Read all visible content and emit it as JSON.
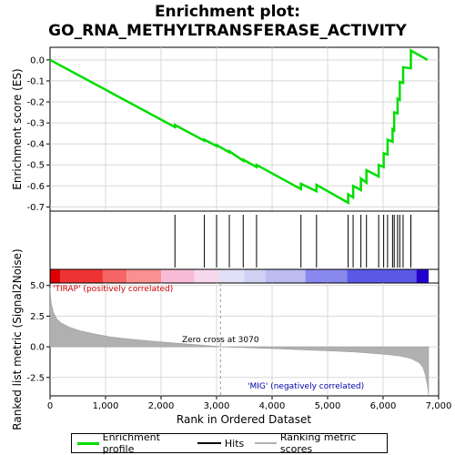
{
  "title_line1": "Enrichment plot:",
  "title_line2": "GO_RNA_METHYLTRANSFERASE_ACTIVITY",
  "colors": {
    "es_line": "#00dd00",
    "hits": "#000000",
    "ranking": "#b0b0b0",
    "positive_label": "#cc0000",
    "negative_label": "#0000aa"
  },
  "legend": {
    "enrichment_profile": "Enrichment profile",
    "hits": "Hits",
    "ranking_metric_scores": "Ranking metric scores"
  },
  "chart_data": [
    {
      "type": "line",
      "name": "enrichment-profile",
      "ylabel": "Enrichment score (ES)",
      "ylim": [
        -0.72,
        0.06
      ],
      "yticks": [
        0.0,
        -0.1,
        -0.2,
        -0.3,
        -0.4,
        -0.5,
        -0.6,
        -0.7
      ],
      "ytick_labels": [
        "0.0",
        "-0.1",
        "-0.2",
        "-0.3",
        "-0.4",
        "-0.5",
        "-0.6",
        "-0.7"
      ],
      "xlim": [
        0,
        7000
      ],
      "grid": true,
      "x": [
        0,
        2250,
        2250,
        2780,
        2780,
        3000,
        3000,
        3230,
        3230,
        3480,
        3480,
        3720,
        3720,
        4520,
        4520,
        4800,
        4800,
        5370,
        5370,
        5460,
        5460,
        5600,
        5600,
        5700,
        5700,
        5920,
        5920,
        6010,
        6010,
        6080,
        6080,
        6170,
        6170,
        6200,
        6200,
        6260,
        6260,
        6300,
        6300,
        6360,
        6360,
        6500,
        6500,
        6800
      ],
      "y": [
        0.0,
        -0.32,
        -0.31,
        -0.385,
        -0.38,
        -0.41,
        -0.405,
        -0.44,
        -0.435,
        -0.48,
        -0.475,
        -0.51,
        -0.5,
        -0.615,
        -0.59,
        -0.625,
        -0.595,
        -0.68,
        -0.64,
        -0.655,
        -0.6,
        -0.62,
        -0.565,
        -0.585,
        -0.525,
        -0.555,
        -0.5,
        -0.51,
        -0.445,
        -0.45,
        -0.38,
        -0.39,
        -0.33,
        -0.335,
        -0.25,
        -0.255,
        -0.185,
        -0.19,
        -0.105,
        -0.11,
        -0.035,
        -0.04,
        0.045,
        0.0
      ]
    },
    {
      "type": "hits",
      "name": "hits",
      "xlim": [
        0,
        7000
      ],
      "x": [
        2250,
        2780,
        3000,
        3230,
        3480,
        3720,
        4520,
        4800,
        5370,
        5460,
        5600,
        5700,
        5920,
        6010,
        6080,
        6170,
        6200,
        6260,
        6300,
        6360,
        6500
      ]
    },
    {
      "type": "heatmap",
      "name": "rank-colorbar",
      "xlim": [
        0,
        7000
      ],
      "segments": [
        {
          "x0": 0,
          "x1": 180,
          "color": "#dd0000"
        },
        {
          "x0": 180,
          "x1": 950,
          "color": "#ee3333"
        },
        {
          "x0": 950,
          "x1": 1380,
          "color": "#f66666"
        },
        {
          "x0": 1380,
          "x1": 2000,
          "color": "#fa9090"
        },
        {
          "x0": 2000,
          "x1": 2600,
          "color": "#f8bbd5"
        },
        {
          "x0": 2600,
          "x1": 3050,
          "color": "#f6d8ec"
        },
        {
          "x0": 3050,
          "x1": 3500,
          "color": "#e0e0f8"
        },
        {
          "x0": 3500,
          "x1": 3880,
          "color": "#d0d0f4"
        },
        {
          "x0": 3880,
          "x1": 4600,
          "color": "#bcbcf0"
        },
        {
          "x0": 4600,
          "x1": 5350,
          "color": "#8888ee"
        },
        {
          "x0": 5350,
          "x1": 6600,
          "color": "#5a5ae6"
        },
        {
          "x0": 6600,
          "x1": 6820,
          "color": "#2200cc"
        }
      ]
    },
    {
      "type": "area",
      "name": "ranked-list-metric",
      "xlabel": "Rank in Ordered Dataset",
      "ylabel": "Ranked list metric (Signal2Noise)",
      "ylim": [
        -4.0,
        5.2
      ],
      "yticks": [
        5.0,
        2.5,
        0.0,
        -2.5
      ],
      "ytick_labels": [
        "5.0",
        "2.5",
        "0.0",
        "-2.5"
      ],
      "xlim": [
        0,
        7000
      ],
      "xticks": [
        0,
        1000,
        2000,
        3000,
        4000,
        5000,
        6000,
        7000
      ],
      "xtick_labels": [
        "0",
        "1,000",
        "2,000",
        "3,000",
        "4,000",
        "5,000",
        "6,000",
        "7,000"
      ],
      "x": [
        0,
        20,
        60,
        120,
        200,
        350,
        550,
        800,
        1100,
        1500,
        2000,
        2500,
        3000,
        3070,
        3500,
        4000,
        4500,
        5000,
        5500,
        6000,
        6300,
        6500,
        6650,
        6720,
        6760,
        6800,
        6820
      ],
      "values": [
        4.8,
        3.6,
        2.8,
        2.3,
        1.95,
        1.6,
        1.3,
        1.05,
        0.8,
        0.6,
        0.4,
        0.22,
        0.04,
        0.0,
        -0.07,
        -0.15,
        -0.24,
        -0.33,
        -0.43,
        -0.6,
        -0.75,
        -0.95,
        -1.3,
        -1.7,
        -2.3,
        -3.2,
        -3.9
      ],
      "zero_cross_label": "Zero cross at 3070",
      "zero_cross_x": 3070,
      "positive_label": "'TIRAP' (positively correlated)",
      "negative_label": "'MIG' (negatively correlated)"
    }
  ]
}
